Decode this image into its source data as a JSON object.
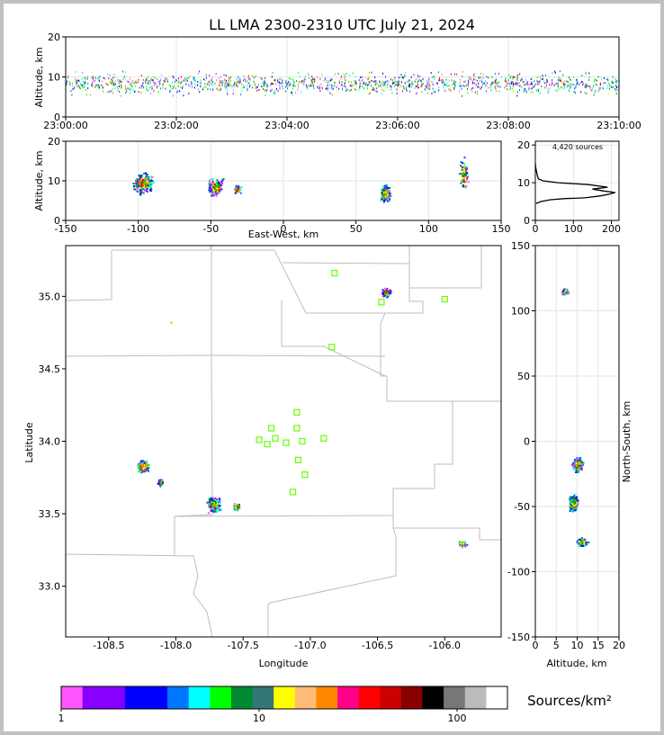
{
  "chart_data": [
    {
      "type": "scatter",
      "panel": "altitude-vs-time",
      "title": "LL LMA 2300-2310 UTC July 21, 2024",
      "ylabel": "Altitude, km",
      "xlim": [
        "23:00:00",
        "23:10:00"
      ],
      "ylim": [
        0,
        20
      ],
      "x_ticks": [
        "23:00:00",
        "23:02:00",
        "23:04:00",
        "23:06:00",
        "23:08:00",
        "23:10:00"
      ],
      "y_ticks": [
        0,
        10,
        20
      ],
      "altitude_band_km": [
        5,
        12
      ],
      "grid": true
    },
    {
      "type": "scatter",
      "panel": "altitude-vs-east-west",
      "xlabel": "East-West, km",
      "ylabel": "Altitude, km",
      "xlim": [
        -150,
        150
      ],
      "ylim": [
        0,
        20
      ],
      "x_ticks": [
        -150,
        -100,
        -50,
        0,
        50,
        100,
        150
      ],
      "y_ticks": [
        0,
        10,
        20
      ],
      "clusters": [
        {
          "x": -97,
          "y": 9.5
        },
        {
          "x": -47,
          "y": 8.5
        },
        {
          "x": -32,
          "y": 8
        },
        {
          "x": 70,
          "y": 7
        },
        {
          "x": 124,
          "y": 12
        }
      ],
      "grid": true
    },
    {
      "type": "line",
      "panel": "altitude-histogram",
      "annotation": "4,420 sources",
      "xlim": [
        0,
        220
      ],
      "ylim": [
        0,
        21
      ],
      "x_ticks": [
        0,
        100,
        200
      ],
      "y_ticks": [
        0,
        10,
        20
      ],
      "profile": [
        [
          2,
          4.5
        ],
        [
          15,
          5
        ],
        [
          40,
          5.5
        ],
        [
          80,
          5.8
        ],
        [
          130,
          6
        ],
        [
          170,
          6.5
        ],
        [
          195,
          7
        ],
        [
          210,
          7.4
        ],
        [
          180,
          7.8
        ],
        [
          150,
          8.3
        ],
        [
          190,
          8.8
        ],
        [
          140,
          9.5
        ],
        [
          60,
          10
        ],
        [
          20,
          10.5
        ],
        [
          8,
          11
        ],
        [
          5,
          12
        ],
        [
          3,
          13
        ],
        [
          1,
          14
        ],
        [
          0,
          15
        ]
      ],
      "grid": true
    },
    {
      "type": "scatter",
      "panel": "plan-view-map",
      "xlabel": "Longitude",
      "ylabel": "Latitude",
      "xlim": [
        -108.82,
        -105.58
      ],
      "ylim": [
        32.65,
        35.35
      ],
      "x_ticks": [
        "-108.5",
        "-108.0",
        "-107.5",
        "-107.0",
        "-106.5",
        "-106.0"
      ],
      "y_ticks": [
        "33.0",
        "33.5",
        "34.0",
        "34.5",
        "35.0"
      ],
      "stations": [
        {
          "lon": -107.38,
          "lat": 34.01
        },
        {
          "lon": -107.32,
          "lat": 33.98
        },
        {
          "lon": -107.29,
          "lat": 34.09
        },
        {
          "lon": -107.26,
          "lat": 34.02
        },
        {
          "lon": -107.18,
          "lat": 33.99
        },
        {
          "lon": -107.1,
          "lat": 34.09
        },
        {
          "lon": -107.1,
          "lat": 34.2
        },
        {
          "lon": -107.06,
          "lat": 34.0
        },
        {
          "lon": -107.09,
          "lat": 33.87
        },
        {
          "lon": -107.04,
          "lat": 33.77
        },
        {
          "lon": -107.13,
          "lat": 33.65
        },
        {
          "lon": -106.9,
          "lat": 34.02
        },
        {
          "lon": -106.82,
          "lat": 35.16
        },
        {
          "lon": -106.84,
          "lat": 34.65
        },
        {
          "lon": -106.47,
          "lat": 34.96
        },
        {
          "lon": -106.0,
          "lat": 34.98
        }
      ],
      "clusters": [
        {
          "lon": -108.25,
          "lat": 33.83
        },
        {
          "lon": -108.12,
          "lat": 33.72
        },
        {
          "lon": -107.72,
          "lat": 33.57
        },
        {
          "lon": -107.55,
          "lat": 33.55
        },
        {
          "lon": -106.44,
          "lat": 35.03
        },
        {
          "lon": -105.87,
          "lat": 33.3
        },
        {
          "lon": -108.04,
          "lat": 34.82
        }
      ]
    },
    {
      "type": "scatter",
      "panel": "north-south-vs-altitude",
      "xlabel": "Altitude, km",
      "ylabel": "North-South, km",
      "xlim": [
        0,
        20
      ],
      "ylim": [
        -150,
        150
      ],
      "x_ticks": [
        0,
        5,
        10,
        15,
        20
      ],
      "y_ticks": [
        -150,
        -100,
        -50,
        0,
        50,
        100,
        150
      ],
      "clusters": [
        {
          "x": 7,
          "y": 115
        },
        {
          "x": 10,
          "y": -17
        },
        {
          "x": 9,
          "y": -47
        },
        {
          "x": 11,
          "y": -77
        }
      ],
      "grid": true
    }
  ],
  "colorbar": {
    "label": "Sources/km²",
    "ticks": [
      "1",
      "10",
      "100"
    ],
    "colors": [
      "#ff55ff",
      "#8800ff",
      "#8800ff",
      "#0000ff",
      "#0000ff",
      "#0077ff",
      "#00ffff",
      "#00ff00",
      "#008833",
      "#337777",
      "#ffff00",
      "#ffbb77",
      "#ff8800",
      "#ff0088",
      "#ff0000",
      "#cc0000",
      "#880000",
      "#000000",
      "#777777",
      "#bbbbbb",
      "#ffffff"
    ]
  }
}
